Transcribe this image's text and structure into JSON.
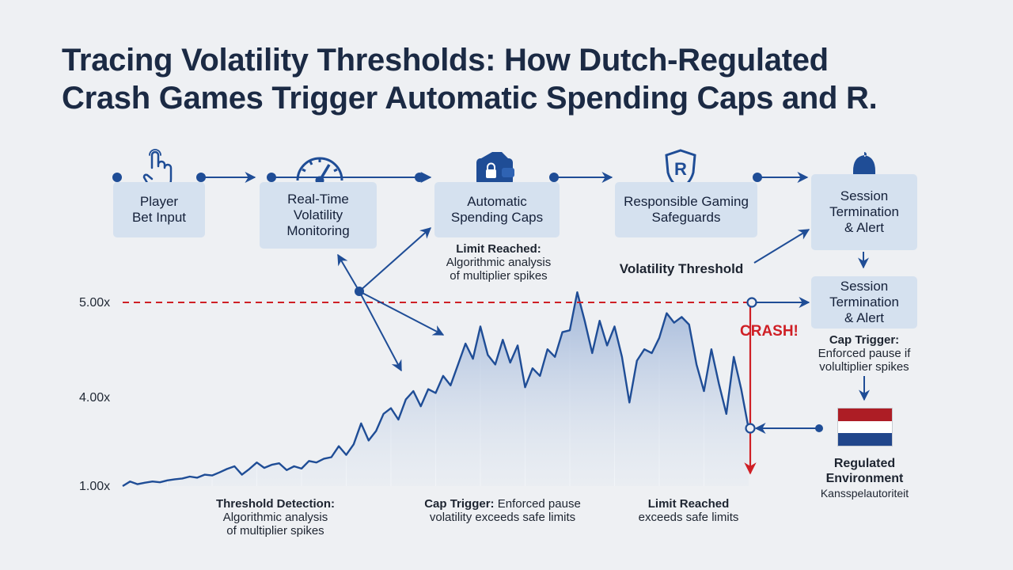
{
  "title": {
    "line1": "Tracing Volatility Thresholds: How Dutch-Regulated",
    "line2": "Crash Games Trigger Automatic Spending Caps and R."
  },
  "flow": [
    {
      "id": "player",
      "icon": "hand-pointer-icon",
      "lines": [
        "Player",
        "Bet Input"
      ]
    },
    {
      "id": "monitoring",
      "icon": "gauge-icon",
      "lines": [
        "Real-Time",
        "Volatility",
        "Monitoring"
      ]
    },
    {
      "id": "caps",
      "icon": "wallet-lock-icon",
      "lines": [
        "Automatic",
        "Spending Caps"
      ]
    },
    {
      "id": "safeguards",
      "icon": "shield-r-icon",
      "lines": [
        "Responsible Gaming",
        "Safeguards"
      ]
    },
    {
      "id": "termination",
      "icon": "bell-icon",
      "lines": [
        "Session",
        "Termination",
        "& Alert"
      ]
    }
  ],
  "side_box": {
    "lines": [
      "Session",
      "Termination",
      "& Alert"
    ]
  },
  "annotations": {
    "limit_top": {
      "head": "Limit Reached:",
      "lines": [
        "Algorithmic analysis",
        "of multiplier spikes"
      ]
    },
    "threshold_label": "Volatility Threshold",
    "crash": "CRASH!",
    "cap_right": {
      "head": "Cap Trigger:",
      "lines": [
        "Enforced pause if",
        "volultiplier spikes"
      ]
    },
    "regulated": {
      "lines": [
        "Regulated",
        "Environment"
      ],
      "sub": "Kansspelautoriteit"
    },
    "bottom_left": {
      "head": "Threshold Detection:",
      "lines": [
        "Algorithmic analysis",
        "of multiplier spikes"
      ]
    },
    "bottom_mid": {
      "head": "Cap Trigger:",
      "rest": "Enforced pause",
      "line2": "volatility exceeds safe limits"
    },
    "bottom_right": {
      "head": "Limit Reached",
      "line2": "exceeds safe limits"
    }
  },
  "y_labels": [
    "5.00x",
    "4.00x",
    "1.00x"
  ],
  "colors": {
    "primary": "#1f4d96",
    "threshold": "#cf1f25",
    "box": "#d5e1ef",
    "flag_red": "#ad1d25",
    "flag_white": "#ffffff",
    "flag_blue": "#21468b"
  },
  "chart_data": {
    "type": "area",
    "threshold": 5.0,
    "y_ticks": [
      "5.00x",
      "4.00x",
      "1.00x"
    ],
    "series": [
      {
        "values": [
          1.0,
          1.12,
          1.05,
          1.09,
          1.12,
          1.1,
          1.15,
          1.18,
          1.2,
          1.25,
          1.22,
          1.3,
          1.28,
          1.36,
          1.45,
          1.52,
          1.3,
          1.45,
          1.62,
          1.48,
          1.56,
          1.6,
          1.42,
          1.52,
          1.46,
          1.66,
          1.62,
          1.72,
          1.76,
          2.05,
          1.82,
          2.1,
          2.65,
          2.2,
          2.45,
          2.9,
          3.05,
          2.75,
          3.28,
          3.5,
          3.1,
          3.55,
          3.45,
          3.9,
          3.65,
          4.2,
          4.75,
          4.35,
          5.2,
          4.45,
          4.2,
          4.85,
          4.25,
          4.7,
          3.6,
          4.1,
          3.9,
          4.6,
          4.4,
          5.05,
          5.1,
          6.1,
          5.35,
          4.5,
          5.35,
          4.7,
          5.2,
          4.4,
          3.2,
          4.3,
          4.6,
          4.5,
          4.9,
          5.55,
          5.3,
          5.45,
          5.25,
          4.2,
          3.5,
          4.6,
          3.7,
          2.9,
          4.4,
          3.55,
          2.5
        ]
      }
    ]
  }
}
